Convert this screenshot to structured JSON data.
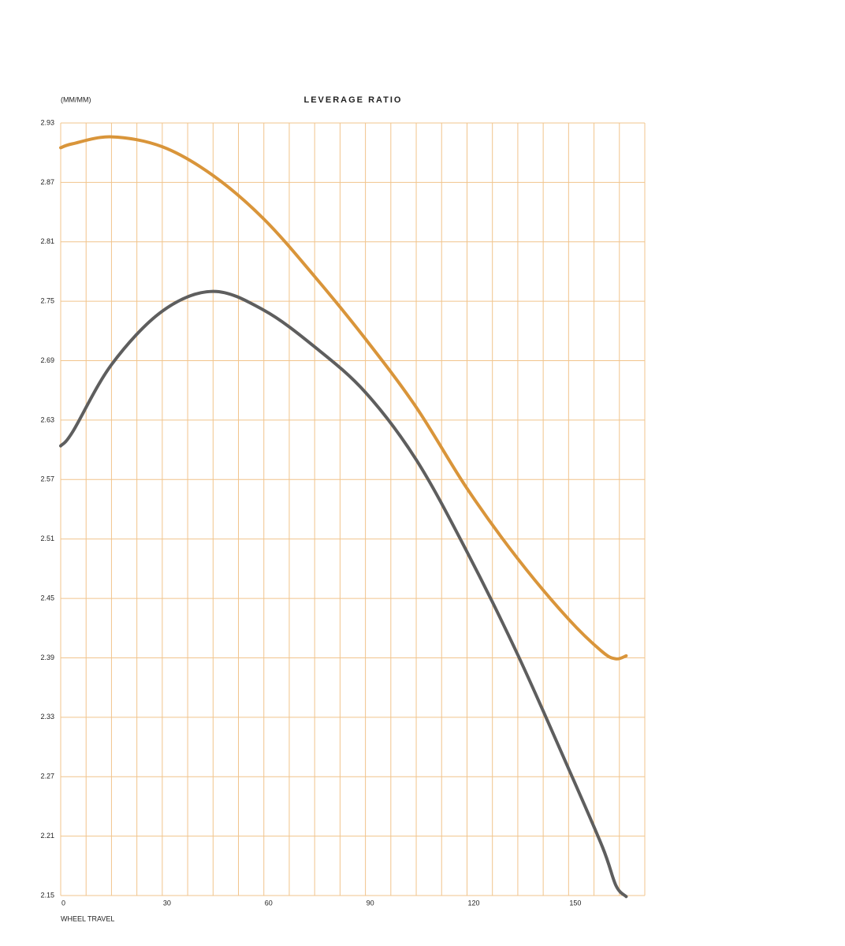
{
  "chart_data": {
    "type": "line",
    "title": "LEVERAGE RATIO",
    "y_label": "(MM/MM)",
    "x_label": "WHEEL TRAVEL",
    "x": [
      0,
      3.5,
      15,
      30,
      45,
      60,
      75,
      90,
      105,
      120,
      135,
      150,
      160,
      164,
      167
    ],
    "series": [
      {
        "color": "#d9953a",
        "values": [
          2.905,
          2.909,
          2.916,
          2.906,
          2.877,
          2.833,
          2.775,
          2.712,
          2.643,
          2.561,
          2.49,
          2.429,
          2.396,
          2.389,
          2.392
        ]
      },
      {
        "color": "#5e5e5e",
        "values": [
          2.604,
          2.618,
          2.686,
          2.74,
          2.76,
          2.741,
          2.704,
          2.658,
          2.59,
          2.497,
          2.393,
          2.278,
          2.199,
          2.16,
          2.149
        ]
      }
    ],
    "xlim": [
      0,
      172.5
    ],
    "xticks": [
      0,
      30,
      60,
      90,
      120,
      150
    ],
    "xgrid": [
      0,
      7.5,
      15,
      22.5,
      30,
      37.5,
      45,
      52.5,
      60,
      67.5,
      75,
      82.5,
      90,
      97.5,
      105,
      112.5,
      120,
      127.5,
      135,
      142.5,
      150,
      157.5,
      165,
      172.5
    ],
    "ylim": [
      2.15,
      2.93
    ],
    "yticks": [
      2.15,
      2.21,
      2.27,
      2.33,
      2.39,
      2.45,
      2.51,
      2.57,
      2.63,
      2.69,
      2.75,
      2.81,
      2.87,
      2.93
    ],
    "grid": true
  }
}
